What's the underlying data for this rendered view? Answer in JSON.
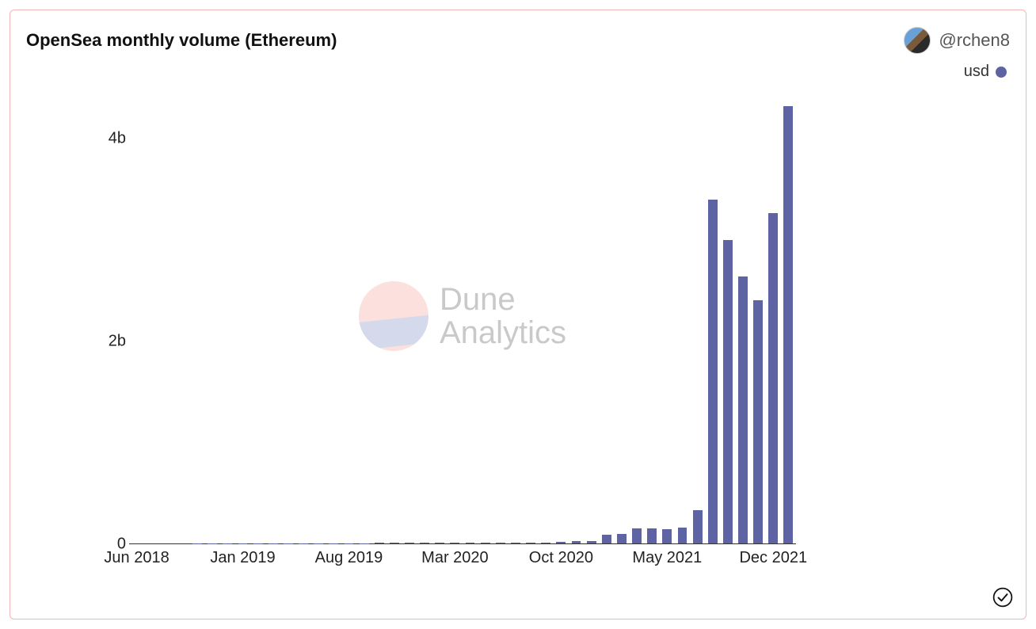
{
  "title": "OpenSea monthly volume (Ethereum)",
  "author": {
    "handle": "@rchen8"
  },
  "legend": {
    "label": "usd",
    "color": "#5d63a3"
  },
  "watermark": {
    "line1": "Dune",
    "line2": "Analytics",
    "top_color": "#f4a9a0",
    "bottom_color": "#8a93c9"
  },
  "card": {
    "border_color": "#f5b5b5",
    "background": "#ffffff"
  },
  "chart": {
    "type": "bar",
    "bar_color": "#5d63a3",
    "background_color": "#ffffff",
    "axis_color": "#333333",
    "label_color": "#222222",
    "title_fontsize": 22,
    "label_fontsize": 20,
    "y": {
      "min": 0,
      "max": 4500000000,
      "ticks": [
        {
          "value": 0,
          "label": "0"
        },
        {
          "value": 2000000000,
          "label": "2b"
        },
        {
          "value": 4000000000,
          "label": "4b"
        }
      ]
    },
    "x_ticks": [
      {
        "index": 0,
        "label": "Jun 2018"
      },
      {
        "index": 7,
        "label": "Jan 2019"
      },
      {
        "index": 14,
        "label": "Aug 2019"
      },
      {
        "index": 21,
        "label": "Mar 2020"
      },
      {
        "index": 28,
        "label": "Oct 2020"
      },
      {
        "index": 35,
        "label": "May 2021"
      },
      {
        "index": 42,
        "label": "Dec 2021"
      }
    ],
    "n_bars": 44,
    "bar_width_ratio": 0.62,
    "values": [
      500000,
      500000,
      500000,
      500000,
      1000000,
      1000000,
      1000000,
      1500000,
      1500000,
      2000000,
      2000000,
      2500000,
      3000000,
      3000000,
      3500000,
      4000000,
      4500000,
      5000000,
      5500000,
      6000000,
      7000000,
      8000000,
      8000000,
      8000000,
      8000000,
      8000000,
      9000000,
      10000000,
      15000000,
      20000000,
      25000000,
      90000000,
      95000000,
      150000000,
      150000000,
      140000000,
      160000000,
      330000000,
      3400000000,
      3000000000,
      2640000000,
      2400000000,
      3260000000,
      4320000000
    ]
  },
  "status_icon": "check"
}
